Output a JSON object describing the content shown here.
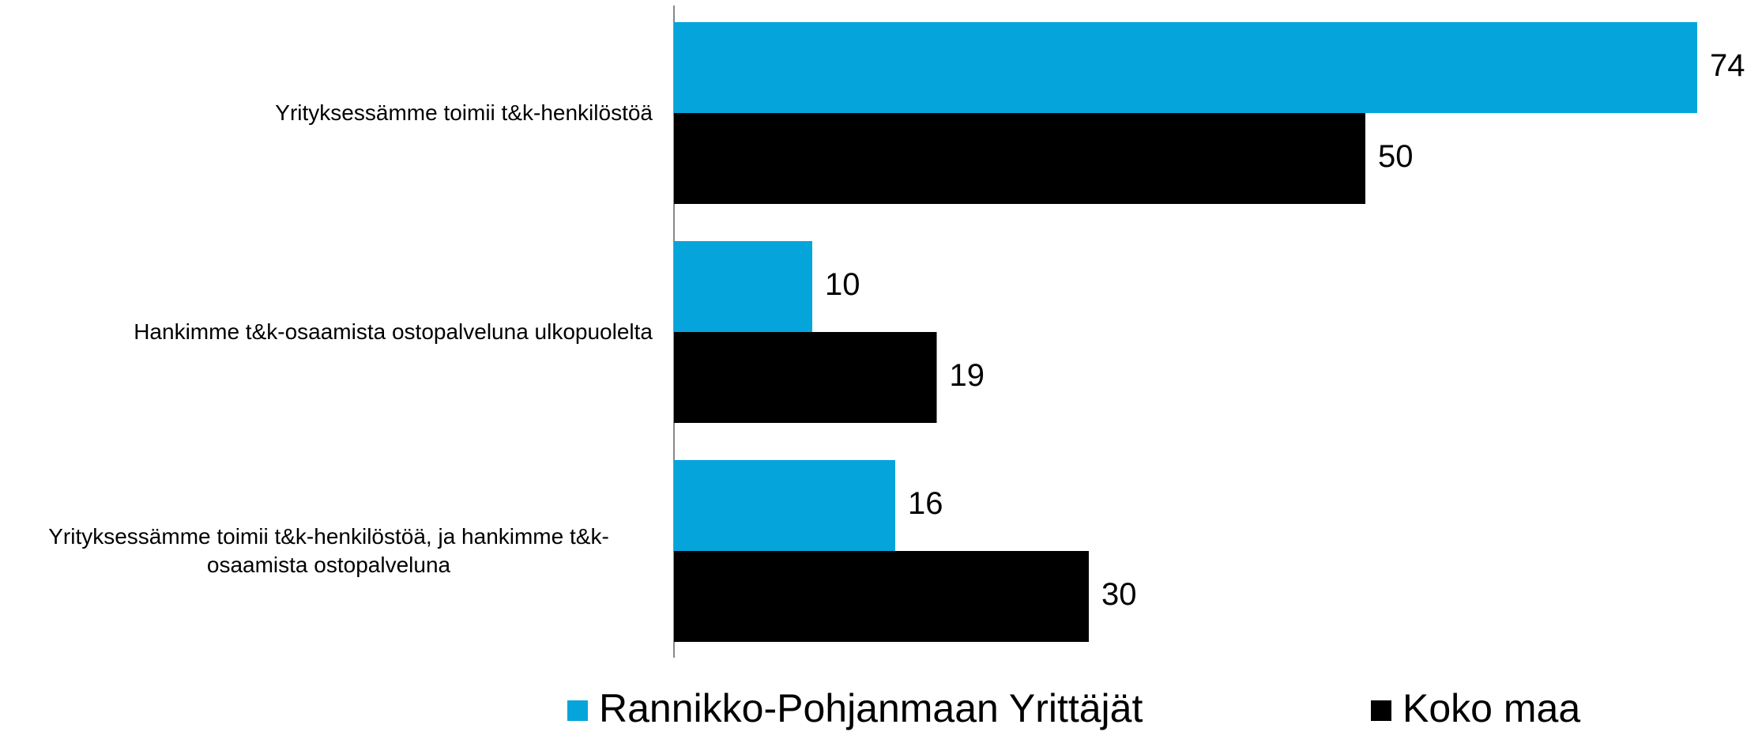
{
  "chart_data": {
    "type": "barh",
    "categories": [
      "Yrityksessämme toimii t&k-henkilöstöä",
      "Hankimme t&k-osaamista ostopalveluna ulkopuolelta",
      "Yrityksessämme toimii t&k-henkilöstöä, ja hankimme t&k-osaamista ostopalveluna"
    ],
    "series": [
      {
        "name": "Rannikko-Pohjanmaan Yrittäjät",
        "color": "#05a5db",
        "values": [
          74,
          10,
          16
        ]
      },
      {
        "name": "Koko maa",
        "color": "#000000",
        "values": [
          50,
          19,
          30
        ]
      }
    ],
    "legend": "bottom"
  }
}
